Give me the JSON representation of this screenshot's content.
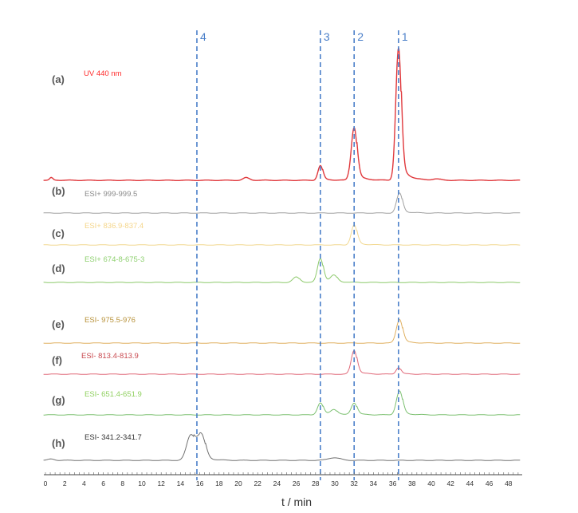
{
  "chart_data": {
    "type": "line",
    "xlabel": "t / min",
    "xlim": [
      0,
      49
    ],
    "x_ticks": [
      0,
      2,
      4,
      6,
      8,
      10,
      12,
      14,
      16,
      18,
      20,
      22,
      24,
      26,
      28,
      30,
      32,
      34,
      36,
      38,
      40,
      42,
      44,
      46,
      48
    ],
    "grid": false,
    "markers": [
      {
        "label": "4",
        "t": 15.7
      },
      {
        "label": "3",
        "t": 28.5
      },
      {
        "label": "2",
        "t": 32.0
      },
      {
        "label": "1",
        "t": 36.6
      }
    ],
    "marker_color": "#4a7fc9",
    "series": [
      {
        "panel": "(a)",
        "name": "UV 440 nm",
        "color": "#e0383c",
        "label_color": "#ff2a2a",
        "peaks": [
          {
            "t": 28.5,
            "h": 0.11,
            "w": 0.25
          },
          {
            "t": 32.0,
            "h": 0.4,
            "w": 0.3
          },
          {
            "t": 36.6,
            "h": 1.0,
            "w": 0.28
          },
          {
            "t": 20.8,
            "h": 0.02,
            "w": 0.3
          },
          {
            "t": 40.5,
            "h": 0.01,
            "w": 0.4
          },
          {
            "t": 0.6,
            "h": 0.02,
            "w": 0.15
          }
        ]
      },
      {
        "panel": "(b)",
        "name": "ESI+ 999-999.5",
        "color": "#a0a0a0",
        "label_color": "#8a8a8a",
        "peaks": [
          {
            "t": 36.7,
            "h": 0.15,
            "w": 0.3
          }
        ]
      },
      {
        "panel": "(c)",
        "name": "ESI+ 836.9-837.4",
        "color": "#f2d890",
        "label_color": "#f5d68a",
        "peaks": [
          {
            "t": 32.0,
            "h": 0.15,
            "w": 0.3
          }
        ]
      },
      {
        "panel": "(d)",
        "name": "ESI+ 674-8-675-3",
        "color": "#8cc96a",
        "label_color": "#8fd070",
        "peaks": [
          {
            "t": 26.0,
            "h": 0.04,
            "w": 0.35
          },
          {
            "t": 28.5,
            "h": 0.18,
            "w": 0.3
          },
          {
            "t": 29.9,
            "h": 0.05,
            "w": 0.35
          }
        ]
      },
      {
        "panel": "(e)",
        "name": "ESI- 975.5-976",
        "color": "#e0b060",
        "label_color": "#b8923a",
        "peaks": [
          {
            "t": 36.7,
            "h": 0.18,
            "w": 0.32
          }
        ]
      },
      {
        "panel": "(f)",
        "name": "ESI- 813.4-813.9",
        "color": "#e06878",
        "label_color": "#c8484e",
        "peaks": [
          {
            "t": 32.0,
            "h": 0.18,
            "w": 0.3
          },
          {
            "t": 36.6,
            "h": 0.05,
            "w": 0.25
          }
        ]
      },
      {
        "panel": "(g)",
        "name": "ESI- 651.4-651.9",
        "color": "#7cc070",
        "label_color": "#90d060",
        "peaks": [
          {
            "t": 28.5,
            "h": 0.09,
            "w": 0.3
          },
          {
            "t": 29.9,
            "h": 0.04,
            "w": 0.35
          },
          {
            "t": 32.0,
            "h": 0.09,
            "w": 0.3
          },
          {
            "t": 36.7,
            "h": 0.18,
            "w": 0.32
          }
        ]
      },
      {
        "panel": "(h)",
        "name": "ESI- 341.2-341.7",
        "color": "#707070",
        "label_color": "#333333",
        "peaks": [
          {
            "t": 15.0,
            "h": 0.17,
            "w": 0.4
          },
          {
            "t": 16.2,
            "h": 0.17,
            "w": 0.4
          },
          {
            "t": 15.6,
            "h": 0.06,
            "w": 0.4
          },
          {
            "t": 29.9,
            "h": 0.02,
            "w": 0.6
          },
          {
            "t": 0.6,
            "h": 0.01,
            "w": 0.3
          }
        ]
      }
    ]
  }
}
